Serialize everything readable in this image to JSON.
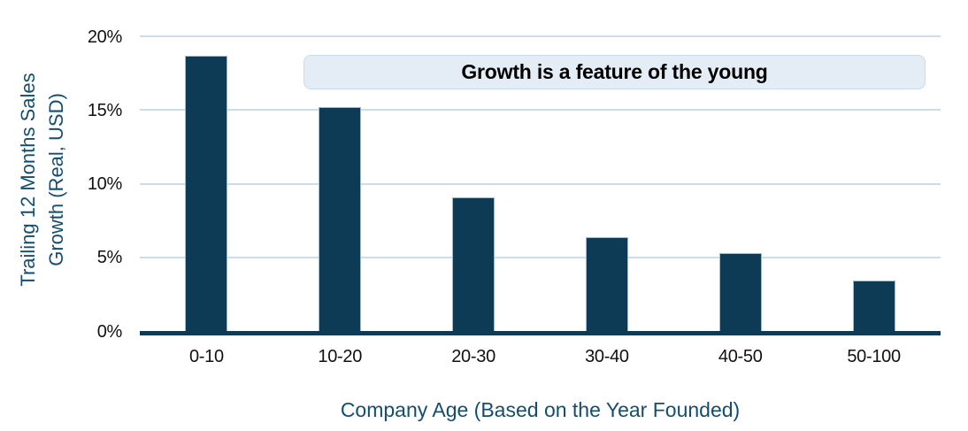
{
  "chart_data": {
    "type": "bar",
    "categories": [
      "0-10",
      "10-20",
      "20-30",
      "30-40",
      "40-50",
      "50-100"
    ],
    "values": [
      18.7,
      15.2,
      9.1,
      6.4,
      5.3,
      3.4
    ],
    "values_unit": "percent",
    "xlabel": "Company Age (Based on the Year Founded)",
    "ylabel": "Trailing 12 Months Sales Growth (Real, USD)",
    "ylabel_line1": "Trailing 12 Months Sales",
    "ylabel_line2": "Growth (Real, USD)",
    "ytick_labels": [
      "0%",
      "5%",
      "10%",
      "15%",
      "20%"
    ],
    "ylim": [
      0,
      20
    ],
    "ytick_step": 5,
    "grid": true,
    "legend": false,
    "annotation": "Growth is a feature of the young",
    "colors": {
      "bar": "#0d3a55",
      "grid": "#ccdde9",
      "axis_title": "#134e6e",
      "tick_label": "#111111",
      "annotation_bg": "#e4edf5",
      "annotation_border": "#c9dceb",
      "annotation_text": "#000000",
      "background": "#ffffff"
    }
  }
}
